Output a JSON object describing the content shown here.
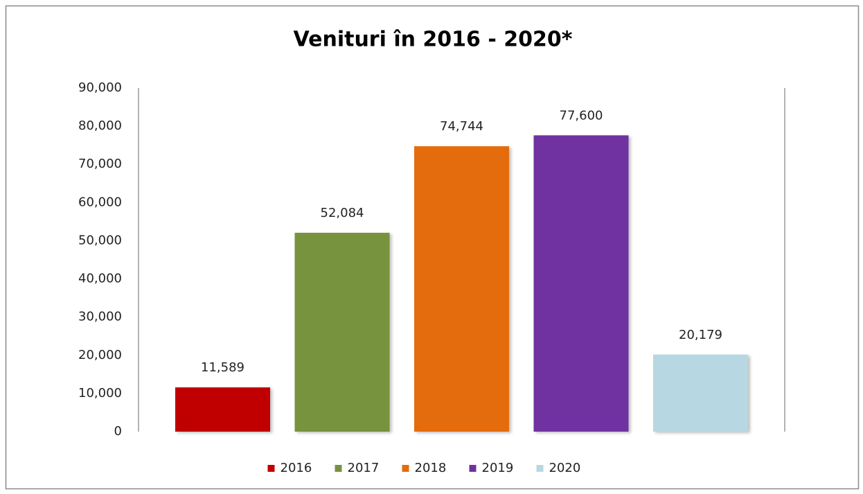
{
  "chart_data": {
    "type": "bar",
    "title": "Venituri în 2016 - 2020*",
    "categories": [
      null
    ],
    "series": [
      {
        "name": "2016",
        "color": "#c00000",
        "values": [
          11589
        ],
        "value_labels": [
          "11,589"
        ]
      },
      {
        "name": "2017",
        "color": "#77933c",
        "values": [
          52084
        ],
        "value_labels": [
          "52,084"
        ]
      },
      {
        "name": "2018",
        "color": "#e46c0a",
        "values": [
          74744
        ],
        "value_labels": [
          "74,744"
        ]
      },
      {
        "name": "2019",
        "color": "#7030a0",
        "values": [
          77600
        ],
        "value_labels": [
          "77,600"
        ]
      },
      {
        "name": "2020",
        "color": "#b7d7e3",
        "values": [
          20179
        ],
        "value_labels": [
          "20,179"
        ]
      }
    ],
    "ylim": [
      0,
      90000
    ],
    "yticks": [
      0,
      {
        "value": 10000,
        "label": "10,000"
      },
      {
        "value": 20000,
        "label": "20,000"
      },
      {
        "value": 30000,
        "label": "30,000"
      },
      {
        "value": 40000,
        "label": "40,000"
      },
      {
        "value": 50000,
        "label": "50,000"
      },
      {
        "value": 60000,
        "label": "60,000"
      },
      {
        "value": 70000,
        "label": "70,000"
      },
      {
        "value": 80000,
        "label": "80,000"
      },
      {
        "value": 90000,
        "label": "90,000"
      }
    ],
    "grid": false,
    "legend": "bottom"
  }
}
